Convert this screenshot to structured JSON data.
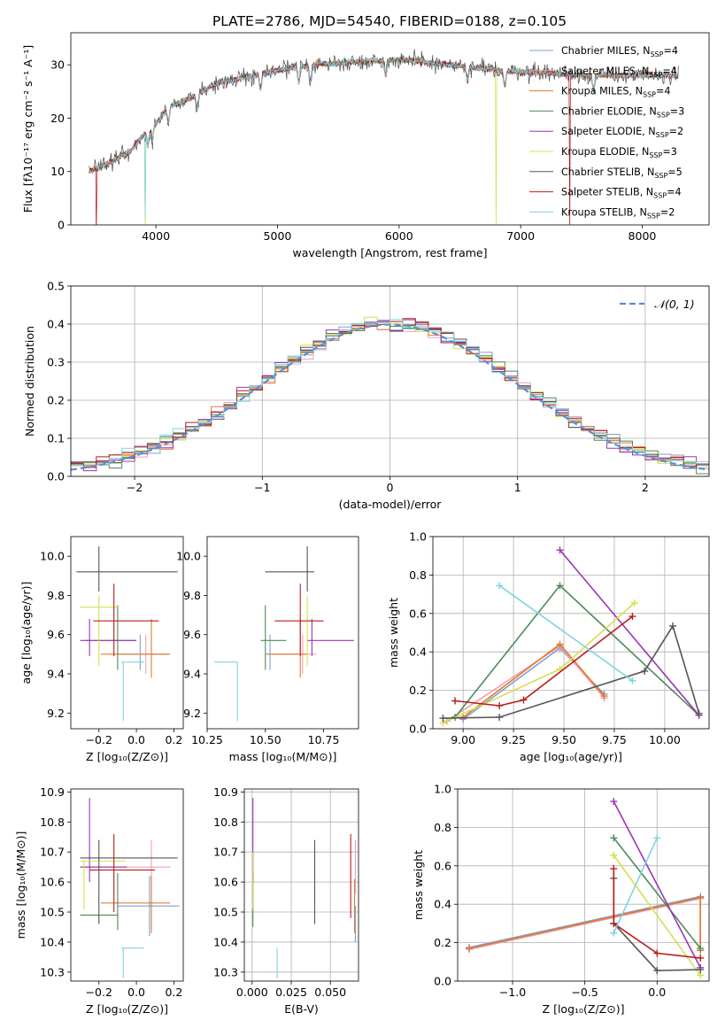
{
  "title": "PLATE=2786, MJD=54540, FIBERID=0188, z=0.105",
  "colors": {
    "Chabrier MILES": "#7f9fd0",
    "Salpeter MILES": "#f0a0b0",
    "Kroupa MILES": "#e07b30",
    "Chabrier ELODIE": "#4f8a58",
    "Salpeter ELODIE": "#9b35b5",
    "Kroupa ELODIE": "#d4e050",
    "Chabrier STELIB": "#555555",
    "Salpeter STELIB": "#b81c1c",
    "Kroupa STELIB": "#7fd4de",
    "normal": "#5b8fd6"
  },
  "chart_data": [
    {
      "id": "spectrum",
      "type": "line",
      "title": "PLATE=2786, MJD=54540, FIBERID=0188, z=0.105",
      "xlabel": "wavelength [Angstrom, rest frame]",
      "ylabel": "Flux [fλ10⁻¹⁷ erg cm⁻² s⁻¹ A⁻¹]",
      "xlim": [
        3300,
        8550
      ],
      "ylim": [
        0,
        36
      ],
      "xticks": [
        4000,
        5000,
        6000,
        7000,
        8000
      ],
      "yticks": [
        0,
        10,
        20,
        30
      ],
      "legend_position": "top-right",
      "continuum": {
        "x": [
          3450,
          3600,
          3800,
          3900,
          4000,
          4100,
          4300,
          4500,
          4800,
          5000,
          5300,
          5600,
          6000,
          6400,
          6800,
          7200,
          7600,
          8000,
          8300
        ],
        "y": [
          10,
          11.5,
          14,
          17,
          19,
          22,
          24,
          26.5,
          28,
          29,
          30,
          30.5,
          31,
          30,
          29,
          28.5,
          28,
          28,
          28
        ]
      },
      "series": [
        {
          "name": "Chabrier MILES",
          "ssp": "4"
        },
        {
          "name": "Salpeter MILES",
          "ssp": "4"
        },
        {
          "name": "Kroupa MILES",
          "ssp": "4"
        },
        {
          "name": "Chabrier ELODIE",
          "ssp": "3"
        },
        {
          "name": "Salpeter ELODIE",
          "ssp": "2"
        },
        {
          "name": "Kroupa ELODIE",
          "ssp": "3"
        },
        {
          "name": "Chabrier STELIB",
          "ssp": "5"
        },
        {
          "name": "Salpeter STELIB",
          "ssp": "4"
        },
        {
          "name": "Kroupa STELIB",
          "ssp": "2"
        }
      ]
    },
    {
      "id": "residuals",
      "type": "histogram",
      "xlabel": "(data-model)/error",
      "ylabel": "Normed distribution",
      "xlim": [
        -2.5,
        2.5
      ],
      "ylim": [
        0,
        0.5
      ],
      "xticks": [
        -2,
        -1,
        0,
        1,
        2
      ],
      "yticks": [
        0.0,
        0.1,
        0.2,
        0.3,
        0.4,
        0.5
      ],
      "grid": true,
      "legend_position": "top-right",
      "legend": [
        {
          "label": "𝒩(0, 1)",
          "style": "dashed"
        }
      ],
      "bin_width": 0.1
    },
    {
      "id": "age_vs_Z",
      "type": "errorbar",
      "xlabel": "Z [log₁₀(Z/Z⊙)]",
      "ylabel": "age  [log₁₀(age/yr)]",
      "xlim": [
        -0.35,
        0.25
      ],
      "ylim": [
        9.12,
        10.1
      ],
      "xticks": [
        -0.2,
        0.0,
        0.2
      ],
      "yticks": [
        9.2,
        9.4,
        9.6,
        9.8,
        10.0
      ],
      "points": [
        {
          "series": "Chabrier MILES",
          "x": 0.02,
          "xerr": [
            0.12,
            0.11
          ],
          "y": 9.5,
          "yerr": [
            0.08,
            0.1
          ]
        },
        {
          "series": "Salpeter MILES",
          "x": 0.05,
          "xerr": [
            0.15,
            0.12
          ],
          "y": 9.5,
          "yerr": [
            0.1,
            0.1
          ]
        },
        {
          "series": "Kroupa MILES",
          "x": 0.08,
          "xerr": [
            0.27,
            0.1
          ],
          "y": 9.5,
          "yerr": [
            0.12,
            0.18
          ]
        },
        {
          "series": "Chabrier ELODIE",
          "x": -0.1,
          "xerr": [
            0.17,
            0.1
          ],
          "y": 9.57,
          "yerr": [
            0.15,
            0.18
          ]
        },
        {
          "series": "Salpeter ELODIE",
          "x": -0.25,
          "xerr": [
            0.05,
            0.25
          ],
          "y": 9.57,
          "yerr": [
            0.08,
            0.11
          ]
        },
        {
          "series": "Kroupa ELODIE",
          "x": -0.2,
          "xerr": [
            0.1,
            0.1
          ],
          "y": 9.74,
          "yerr": [
            0.3,
            0.06
          ]
        },
        {
          "series": "Chabrier STELIB",
          "x": -0.2,
          "xerr": [
            0.12,
            0.42
          ],
          "y": 9.92,
          "yerr": [
            0.1,
            0.13
          ]
        },
        {
          "series": "Salpeter STELIB",
          "x": -0.12,
          "xerr": [
            0.11,
            0.24
          ],
          "y": 9.67,
          "yerr": [
            0.18,
            0.19
          ]
        },
        {
          "series": "Kroupa STELIB",
          "x": -0.07,
          "xerr": [
            0.01,
            0.11
          ],
          "y": 9.46,
          "yerr": [
            0.3,
            0.0
          ]
        }
      ]
    },
    {
      "id": "age_vs_mass",
      "type": "errorbar",
      "xlabel": "mass [log₁₀(M/M⊙)]",
      "ylabel": "",
      "xlim": [
        10.25,
        10.9
      ],
      "ylim": [
        9.12,
        10.1
      ],
      "xticks": [
        10.25,
        10.5,
        10.75
      ],
      "yticks": [
        9.2,
        9.4,
        9.6,
        9.8,
        10.0
      ],
      "points": [
        {
          "series": "Chabrier MILES",
          "x": 10.52,
          "xerr": [
            0.02,
            0.1
          ],
          "y": 9.5,
          "yerr": [
            0.08,
            0.1
          ]
        },
        {
          "series": "Salpeter MILES",
          "x": 10.66,
          "xerr": [
            0.1,
            0.06
          ],
          "y": 9.5,
          "yerr": [
            0.1,
            0.1
          ]
        },
        {
          "series": "Kroupa MILES",
          "x": 10.65,
          "xerr": [
            0.14,
            0.03
          ],
          "y": 9.5,
          "yerr": [
            0.12,
            0.18
          ]
        },
        {
          "series": "Chabrier ELODIE",
          "x": 10.5,
          "xerr": [
            0.02,
            0.09
          ],
          "y": 9.57,
          "yerr": [
            0.15,
            0.18
          ]
        },
        {
          "series": "Salpeter ELODIE",
          "x": 10.7,
          "xerr": [
            0.02,
            0.18
          ],
          "y": 9.57,
          "yerr": [
            0.08,
            0.11
          ]
        },
        {
          "series": "Kroupa ELODIE",
          "x": 10.68,
          "xerr": [
            0.0,
            0.0
          ],
          "y": 9.74,
          "yerr": [
            0.3,
            0.06
          ]
        },
        {
          "series": "Chabrier STELIB",
          "x": 10.68,
          "xerr": [
            0.18,
            0.03
          ],
          "y": 9.92,
          "yerr": [
            0.1,
            0.13
          ]
        },
        {
          "series": "Salpeter STELIB",
          "x": 10.65,
          "xerr": [
            0.11,
            0.1
          ],
          "y": 9.67,
          "yerr": [
            0.18,
            0.19
          ]
        },
        {
          "series": "Kroupa STELIB",
          "x": 10.38,
          "xerr": [
            0.1,
            0.0
          ],
          "y": 9.46,
          "yerr": [
            0.3,
            0.0
          ]
        }
      ]
    },
    {
      "id": "weight_vs_age",
      "type": "line",
      "xlabel": "age  [log₁₀(age/yr)]",
      "ylabel": "mass weight",
      "xlim": [
        8.85,
        10.22
      ],
      "ylim": [
        0,
        1.0
      ],
      "xticks": [
        9.0,
        9.25,
        9.5,
        9.75,
        10.0
      ],
      "yticks": [
        0.0,
        0.2,
        0.4,
        0.6,
        0.8,
        1.0
      ],
      "grid": true,
      "series": [
        {
          "name": "Chabrier MILES",
          "x": [
            9.0,
            9.48,
            9.7
          ],
          "y": [
            0.05,
            0.42,
            0.18
          ]
        },
        {
          "name": "Salpeter MILES",
          "x": [
            8.92,
            9.48,
            9.7
          ],
          "y": [
            0.04,
            0.43,
            0.16
          ]
        },
        {
          "name": "Kroupa MILES",
          "x": [
            9.0,
            9.48,
            9.7
          ],
          "y": [
            0.06,
            0.44,
            0.17
          ]
        },
        {
          "name": "Chabrier ELODIE",
          "x": [
            8.96,
            9.48,
            10.17
          ],
          "y": [
            0.06,
            0.745,
            0.07
          ]
        },
        {
          "name": "Salpeter ELODIE",
          "x": [
            9.48,
            10.17
          ],
          "y": [
            0.93,
            0.07
          ]
        },
        {
          "name": "Kroupa ELODIE",
          "x": [
            8.9,
            9.48,
            9.85
          ],
          "y": [
            0.03,
            0.31,
            0.655
          ]
        },
        {
          "name": "Chabrier STELIB",
          "x": [
            8.9,
            9.18,
            9.9,
            10.04,
            10.17
          ],
          "y": [
            0.055,
            0.06,
            0.3,
            0.535,
            0.08
          ]
        },
        {
          "name": "Salpeter STELIB",
          "x": [
            8.96,
            9.18,
            9.3,
            9.84
          ],
          "y": [
            0.145,
            0.12,
            0.15,
            0.585
          ]
        },
        {
          "name": "Kroupa STELIB",
          "x": [
            9.18,
            9.84
          ],
          "y": [
            0.745,
            0.25
          ]
        }
      ]
    },
    {
      "id": "mass_vs_Z",
      "type": "errorbar",
      "xlabel": "Z [log₁₀(Z/Z⊙)]",
      "ylabel": "mass [log₁₀(M/M⊙)]",
      "xlim": [
        -0.35,
        0.25
      ],
      "ylim": [
        10.27,
        10.91
      ],
      "xticks": [
        -0.2,
        0.0,
        0.2
      ],
      "yticks": [
        10.3,
        10.4,
        10.5,
        10.6,
        10.7,
        10.8,
        10.9
      ],
      "points": [
        {
          "series": "Chabrier MILES",
          "x": 0.07,
          "xerr": [
            0.17,
            0.16
          ],
          "y": 10.52,
          "yerr": [
            0.1,
            0.1
          ]
        },
        {
          "series": "Salpeter MILES",
          "x": 0.08,
          "xerr": [
            0.38,
            0.1
          ],
          "y": 10.65,
          "yerr": [
            0.1,
            0.09
          ]
        },
        {
          "series": "Kroupa MILES",
          "x": 0.08,
          "xerr": [
            0.27,
            0.1
          ],
          "y": 10.53,
          "yerr": [
            0.1,
            0.09
          ]
        },
        {
          "series": "Chabrier ELODIE",
          "x": -0.1,
          "xerr": [
            0.2,
            0.0
          ],
          "y": 10.49,
          "yerr": [
            0.05,
            0.14
          ]
        },
        {
          "series": "Salpeter ELODIE",
          "x": -0.25,
          "xerr": [
            0.05,
            0.2
          ],
          "y": 10.65,
          "yerr": [
            0.05,
            0.23
          ]
        },
        {
          "series": "Kroupa ELODIE",
          "x": -0.28,
          "xerr": [
            0.02,
            0.22
          ],
          "y": 10.67,
          "yerr": [
            0.16,
            0.0
          ]
        },
        {
          "series": "Chabrier STELIB",
          "x": -0.2,
          "xerr": [
            0.1,
            0.42
          ],
          "y": 10.68,
          "yerr": [
            0.22,
            0.06
          ]
        },
        {
          "series": "Salpeter STELIB",
          "x": -0.12,
          "xerr": [
            0.13,
            0.22
          ],
          "y": 10.64,
          "yerr": [
            0.14,
            0.12
          ]
        },
        {
          "series": "Kroupa STELIB",
          "x": -0.07,
          "xerr": [
            0.01,
            0.11
          ],
          "y": 10.38,
          "yerr": [
            0.1,
            0.0
          ]
        }
      ]
    },
    {
      "id": "mass_vs_ebv",
      "type": "errorbar",
      "xlabel": "E(B-V)",
      "ylabel": "",
      "xlim": [
        -0.005,
        0.068
      ],
      "ylim": [
        10.27,
        10.91
      ],
      "xticks": [
        0.0,
        0.025,
        0.05
      ],
      "yticks": [
        10.3,
        10.4,
        10.5,
        10.6,
        10.7,
        10.8,
        10.9
      ],
      "grid": true,
      "points": [
        {
          "series": "Chabrier MILES",
          "x": 0.066,
          "y": 10.52,
          "yerr": [
            0.12,
            0.0
          ]
        },
        {
          "series": "Salpeter MILES",
          "x": 0.066,
          "y": 10.65,
          "yerr": [
            0.09,
            0.09
          ]
        },
        {
          "series": "Kroupa MILES",
          "x": 0.0655,
          "y": 10.53,
          "yerr": [
            0.1,
            0.08
          ]
        },
        {
          "series": "Chabrier ELODIE",
          "x": 0.0005,
          "y": 10.49,
          "yerr": [
            0.04,
            0.14
          ]
        },
        {
          "series": "Salpeter ELODIE",
          "x": 0.0005,
          "y": 10.72,
          "yerr": [
            0.12,
            0.16
          ]
        },
        {
          "series": "Kroupa ELODIE",
          "x": 0.0003,
          "y": 10.6,
          "yerr": [
            0.09,
            0.1
          ]
        },
        {
          "series": "Chabrier STELIB",
          "x": 0.04,
          "y": 10.6,
          "yerr": [
            0.14,
            0.14
          ]
        },
        {
          "series": "Salpeter STELIB",
          "x": 0.063,
          "y": 10.65,
          "yerr": [
            0.17,
            0.11
          ]
        },
        {
          "series": "Kroupa STELIB",
          "x": 0.016,
          "y": 10.33,
          "yerr": [
            0.05,
            0.05
          ]
        }
      ]
    },
    {
      "id": "weight_vs_Z",
      "type": "line",
      "xlabel": "Z [log₁₀(Z/Z⊙)]",
      "ylabel": "mass weight",
      "xlim": [
        -1.38,
        0.36
      ],
      "ylim": [
        0,
        1.0
      ],
      "xticks": [
        -1.0,
        -0.5,
        0.0
      ],
      "yticks": [
        0.0,
        0.2,
        0.4,
        0.6,
        0.8,
        1.0
      ],
      "grid": true,
      "series": [
        {
          "name": "Chabrier MILES",
          "x": [
            -1.3,
            0.3,
            0.3
          ],
          "y": [
            0.175,
            0.44,
            0.16
          ]
        },
        {
          "name": "Salpeter MILES",
          "x": [
            -1.3,
            0.3,
            0.3
          ],
          "y": [
            0.165,
            0.43,
            0.16
          ]
        },
        {
          "name": "Kroupa MILES",
          "x": [
            -1.3,
            0.3,
            0.3
          ],
          "y": [
            0.17,
            0.435,
            0.16
          ]
        },
        {
          "name": "Chabrier ELODIE",
          "x": [
            -0.3,
            0.3
          ],
          "y": [
            0.745,
            0.17
          ]
        },
        {
          "name": "Salpeter ELODIE",
          "x": [
            -0.3,
            0.3
          ],
          "y": [
            0.935,
            0.07
          ]
        },
        {
          "name": "Kroupa ELODIE",
          "x": [
            -0.3,
            0.3
          ],
          "y": [
            0.655,
            0.03
          ]
        },
        {
          "name": "Chabrier STELIB",
          "x": [
            -0.3,
            -0.3,
            0.0,
            0.3
          ],
          "y": [
            0.535,
            0.3,
            0.055,
            0.06
          ]
        },
        {
          "name": "Salpeter STELIB",
          "x": [
            -0.3,
            -0.3,
            0.0,
            0.3
          ],
          "y": [
            0.585,
            0.3,
            0.145,
            0.12
          ]
        },
        {
          "name": "Kroupa STELIB",
          "x": [
            -0.3,
            0.0
          ],
          "y": [
            0.25,
            0.745
          ]
        }
      ]
    }
  ]
}
